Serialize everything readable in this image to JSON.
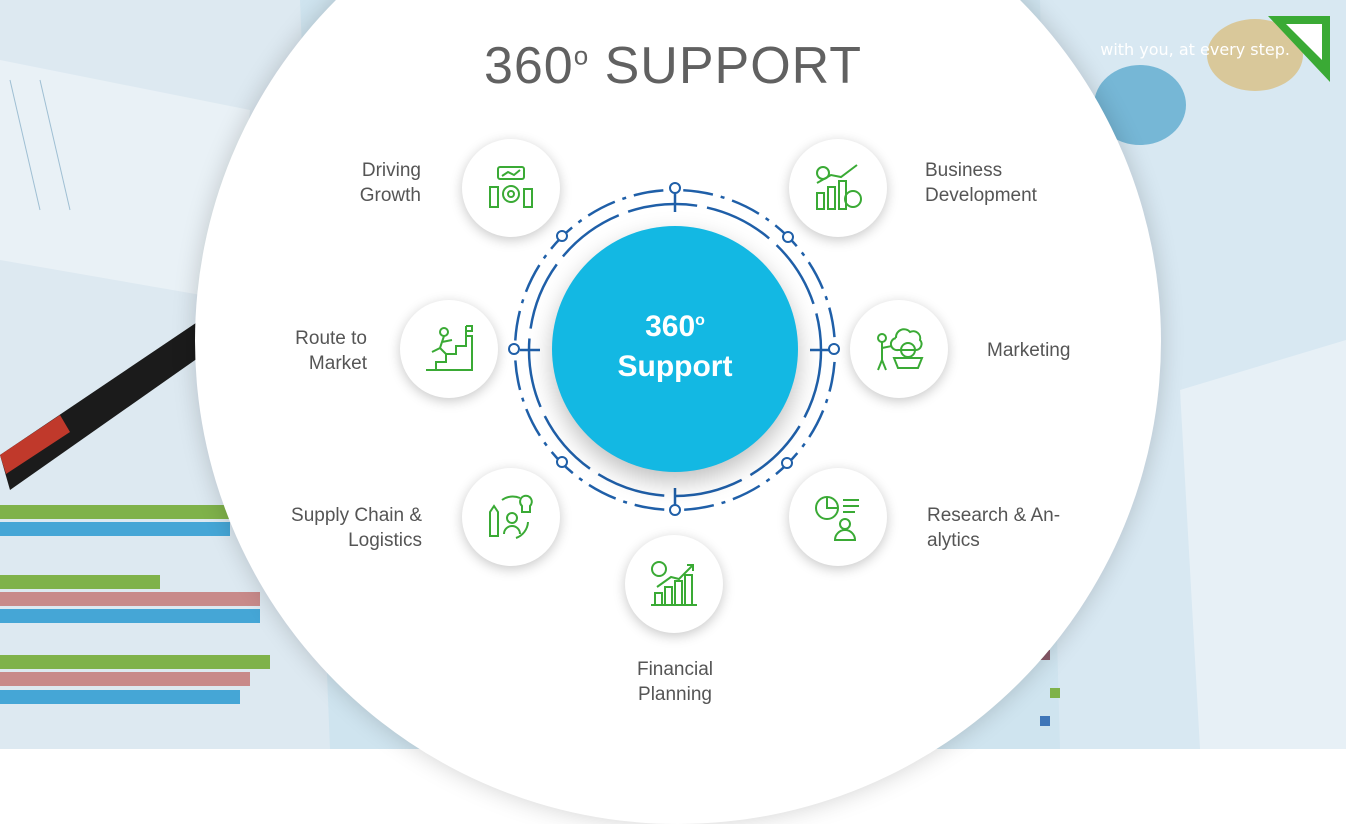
{
  "header": {
    "title": "360",
    "title_suffix": "SUPPORT",
    "tagline": "with you, at every step."
  },
  "center": {
    "line1": "360",
    "line2": "Support"
  },
  "items": [
    {
      "label": "Driving Growth"
    },
    {
      "label": "Business Development"
    },
    {
      "label": "Route to Market"
    },
    {
      "label": "Marketing"
    },
    {
      "label": "Supply Chain & Logistics"
    },
    {
      "label": "Research & Analytics"
    },
    {
      "label": "Financial Planning"
    }
  ],
  "colors": {
    "accent": "#13b8e3",
    "ring": "#1f5fa8",
    "icon": "#3aaa35",
    "text": "#555555"
  },
  "icons": [
    "growth-gear-icon",
    "dollar-bar-chart-icon",
    "stair-climber-icon",
    "marketing-cart-icon",
    "supply-chain-bulb-icon",
    "analytics-person-icon",
    "dollar-stairs-icon"
  ]
}
